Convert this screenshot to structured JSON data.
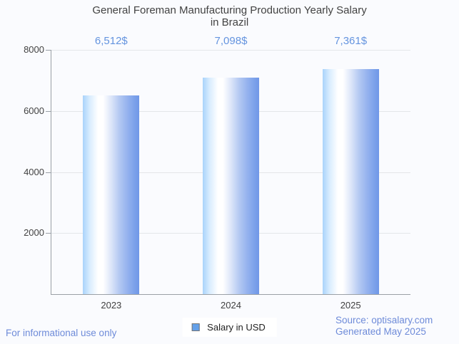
{
  "chart_data": {
    "type": "bar",
    "title": "General Foreman Manufacturing Production Yearly Salary in Brazil",
    "title_lines": [
      "General Foreman Manufacturing Production Yearly Salary",
      "in Brazil"
    ],
    "categories": [
      "2023",
      "2024",
      "2025"
    ],
    "series": [
      {
        "name": "Salary in USD",
        "values": [
          6512,
          7098,
          7361
        ]
      }
    ],
    "value_labels": [
      "6,512$",
      "7,098$",
      "7,361$"
    ],
    "xlabel": "",
    "ylabel": "",
    "ylim": [
      0,
      8000
    ],
    "yticks": [
      2000,
      4000,
      6000,
      8000
    ],
    "ytick_labels": [
      "2000",
      "4000",
      "6000",
      "8000"
    ],
    "grid": true,
    "legend_position": "bottom"
  },
  "legend": {
    "label": "Salary in USD",
    "swatch_color": "#63a0e9",
    "swatch_border_color": "#757575"
  },
  "footer": {
    "disclaimer": "For informational use only",
    "source": "Source: optisalary.com",
    "generated": "Generated May 2025"
  },
  "colors": {
    "background": "#fafbfe",
    "title_text": "#424242",
    "axis_line": "#9aa0a6",
    "gridline": "#e4e6e9",
    "axis_label_text": "#424242",
    "value_label_text": "#6494df",
    "footer_text": "#6e8bd9",
    "bar_gradient_left": "#a9d3fb",
    "bar_gradient_mid": "#ffffff",
    "bar_gradient_right": "#7097e7"
  }
}
